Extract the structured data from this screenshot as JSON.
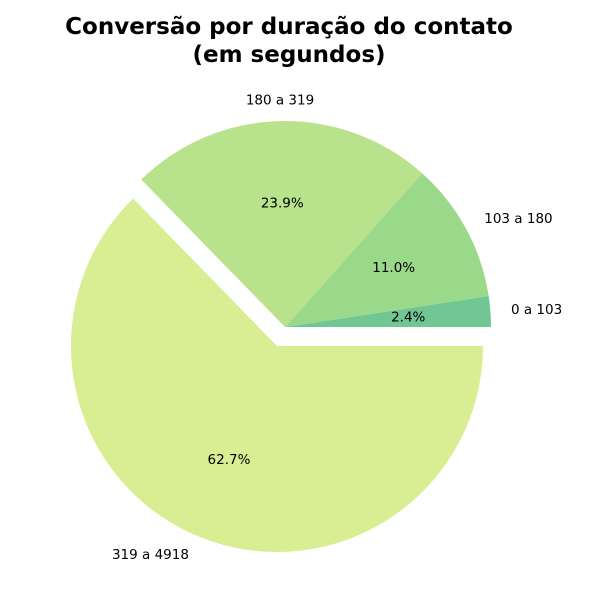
{
  "chart_data": {
    "type": "pie",
    "title": "Conversão por duração do contato\n(em segundos)",
    "title_lines": [
      "Conversão por duração do contato",
      "(em segundos)"
    ],
    "categories": [
      "0 a 103",
      "103 a 180",
      "180 a 319",
      "319 a 4918"
    ],
    "values": [
      2.4,
      11.0,
      23.9,
      62.7
    ],
    "value_labels": [
      "2.4%",
      "11.0%",
      "23.9%",
      "62.7%"
    ],
    "colors": [
      "#71c793",
      "#9bd98a",
      "#b8e38c",
      "#d9ee92"
    ],
    "exploded": [
      "319 a 4918"
    ],
    "start_angle": 0,
    "direction": "counterclockwise",
    "legend": "none"
  }
}
